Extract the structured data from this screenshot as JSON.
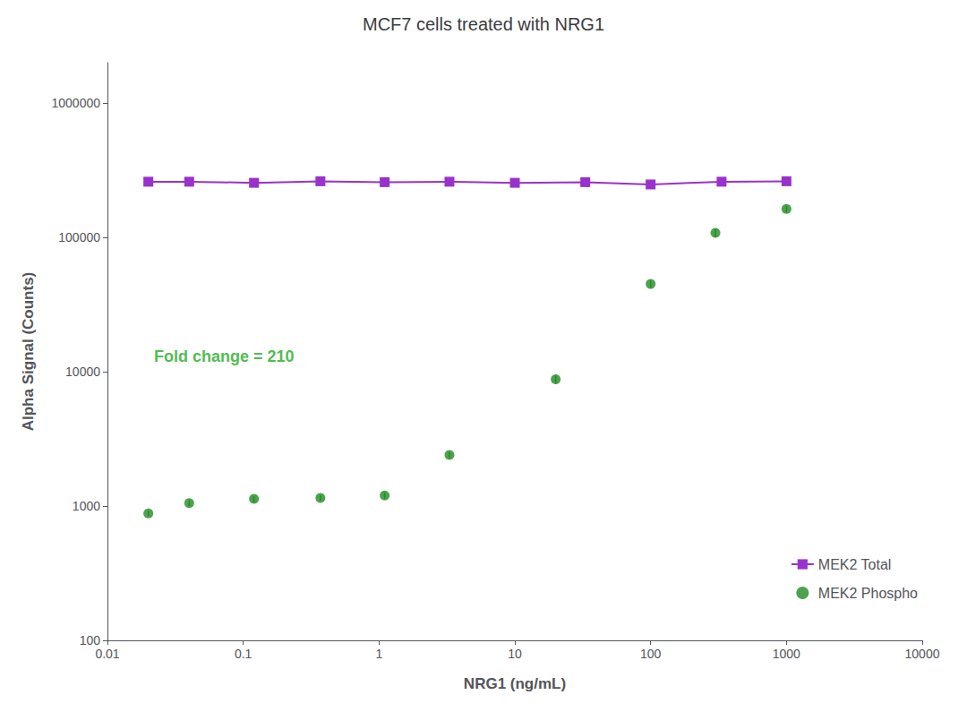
{
  "chart_data": {
    "type": "scatter",
    "title": "MCF7 cells treated with NRG1",
    "xlabel": "NRG1 (ng/mL)",
    "ylabel": "Alpha Signal (Counts)",
    "log": true,
    "grid": false,
    "legend": "lower right",
    "xlim": [
      0.01,
      10000
    ],
    "ylim": [
      100,
      2000000
    ],
    "xticks": [
      0.01,
      0.1,
      1,
      10,
      100,
      1000,
      10000
    ],
    "yticks": [
      100,
      1000,
      10000,
      100000,
      1000000
    ],
    "series": [
      {
        "name": "MEK2 Total",
        "type": "line",
        "marker": "square",
        "color": "#9932CC",
        "x": [
          0.02,
          0.04,
          0.12,
          0.37,
          1.1,
          3.3,
          10,
          33,
          100,
          333,
          1000
        ],
        "values": [
          260000,
          260000,
          255000,
          262000,
          258000,
          260000,
          255000,
          258000,
          248000,
          260000,
          262000
        ],
        "errors": [
          4000,
          4000,
          4000,
          4000,
          4000,
          4000,
          4000,
          4000,
          4000,
          4000,
          4000
        ]
      },
      {
        "name": "MEK2 Phospho",
        "type": "scatter",
        "marker": "circle",
        "color": "#228B22",
        "x": [
          0.02,
          0.04,
          0.12,
          0.37,
          1.1,
          3.3,
          20,
          100,
          300,
          1000
        ],
        "values": [
          880,
          1050,
          1130,
          1150,
          1200,
          2400,
          8800,
          45000,
          108000,
          163000
        ],
        "errors": [
          40,
          50,
          60,
          55,
          65,
          130,
          650,
          2800,
          7500,
          9000
        ]
      }
    ],
    "annotations": [
      {
        "text": "Fold change = 210",
        "x": 0.022,
        "y": 13000,
        "color": "#22aa22"
      }
    ]
  }
}
